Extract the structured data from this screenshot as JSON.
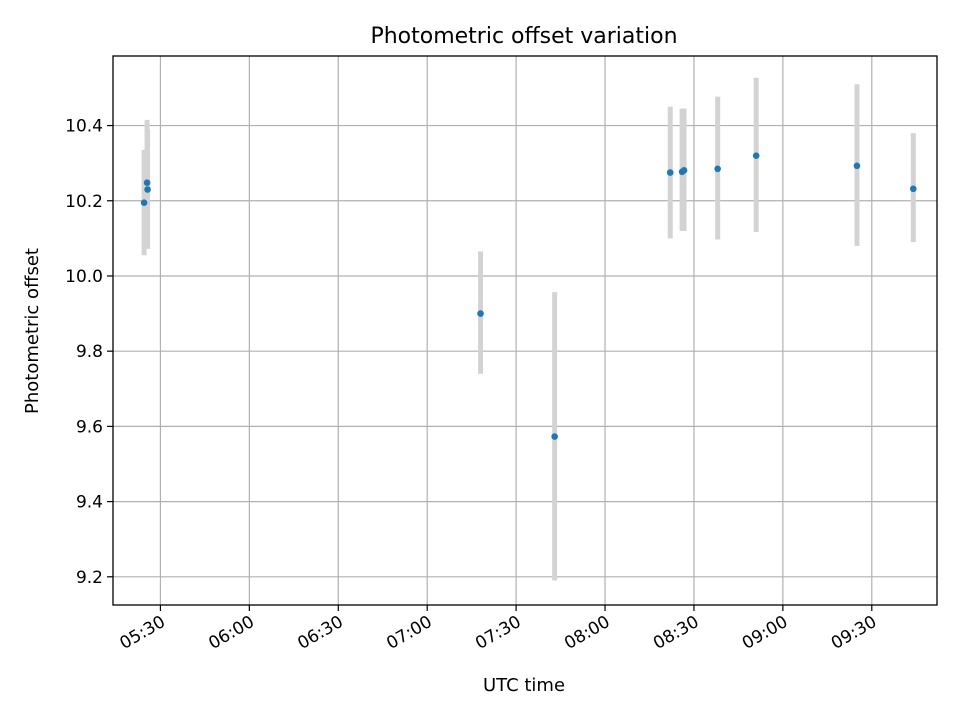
{
  "chart_data": {
    "type": "scatter",
    "title": "Photometric offset variation",
    "xlabel": "UTC time",
    "ylabel": "Photometric offset",
    "x_unit": "UTC time of day",
    "xlim": [
      "05:14",
      "09:52"
    ],
    "ylim": [
      9.125,
      10.585
    ],
    "x_ticks": [
      "05:30",
      "06:00",
      "06:30",
      "07:00",
      "07:30",
      "08:00",
      "08:30",
      "09:00",
      "09:30"
    ],
    "y_ticks": [
      9.2,
      9.4,
      9.6,
      9.8,
      10.0,
      10.2,
      10.4
    ],
    "y_tick_labels": [
      "9.2",
      "9.4",
      "9.6",
      "9.8",
      "10.0",
      "10.2",
      "10.4"
    ],
    "grid": true,
    "point_color": "#1f77b4",
    "errorbar_color": "#d3d3d3",
    "points": [
      {
        "t": "05:24:30",
        "y": 10.195,
        "err_low": 10.055,
        "err_high": 10.335
      },
      {
        "t": "05:25:30",
        "y": 10.248,
        "err_low": 10.095,
        "err_high": 10.415
      },
      {
        "t": "05:25:40",
        "y": 10.23,
        "err_low": 10.072,
        "err_high": 10.39
      },
      {
        "t": "07:18",
        "y": 9.9,
        "err_low": 9.74,
        "err_high": 10.065
      },
      {
        "t": "07:43",
        "y": 9.573,
        "err_low": 9.19,
        "err_high": 9.957
      },
      {
        "t": "08:22",
        "y": 10.275,
        "err_low": 10.1,
        "err_high": 10.45
      },
      {
        "t": "08:26",
        "y": 10.277,
        "err_low": 10.12,
        "err_high": 10.445
      },
      {
        "t": "08:26:40",
        "y": 10.281,
        "err_low": 10.12,
        "err_high": 10.445
      },
      {
        "t": "08:38",
        "y": 10.285,
        "err_low": 10.097,
        "err_high": 10.477
      },
      {
        "t": "08:51",
        "y": 10.32,
        "err_low": 10.117,
        "err_high": 10.527
      },
      {
        "t": "09:25",
        "y": 10.293,
        "err_low": 10.08,
        "err_high": 10.51
      },
      {
        "t": "09:44",
        "y": 10.232,
        "err_low": 10.09,
        "err_high": 10.38
      }
    ]
  }
}
